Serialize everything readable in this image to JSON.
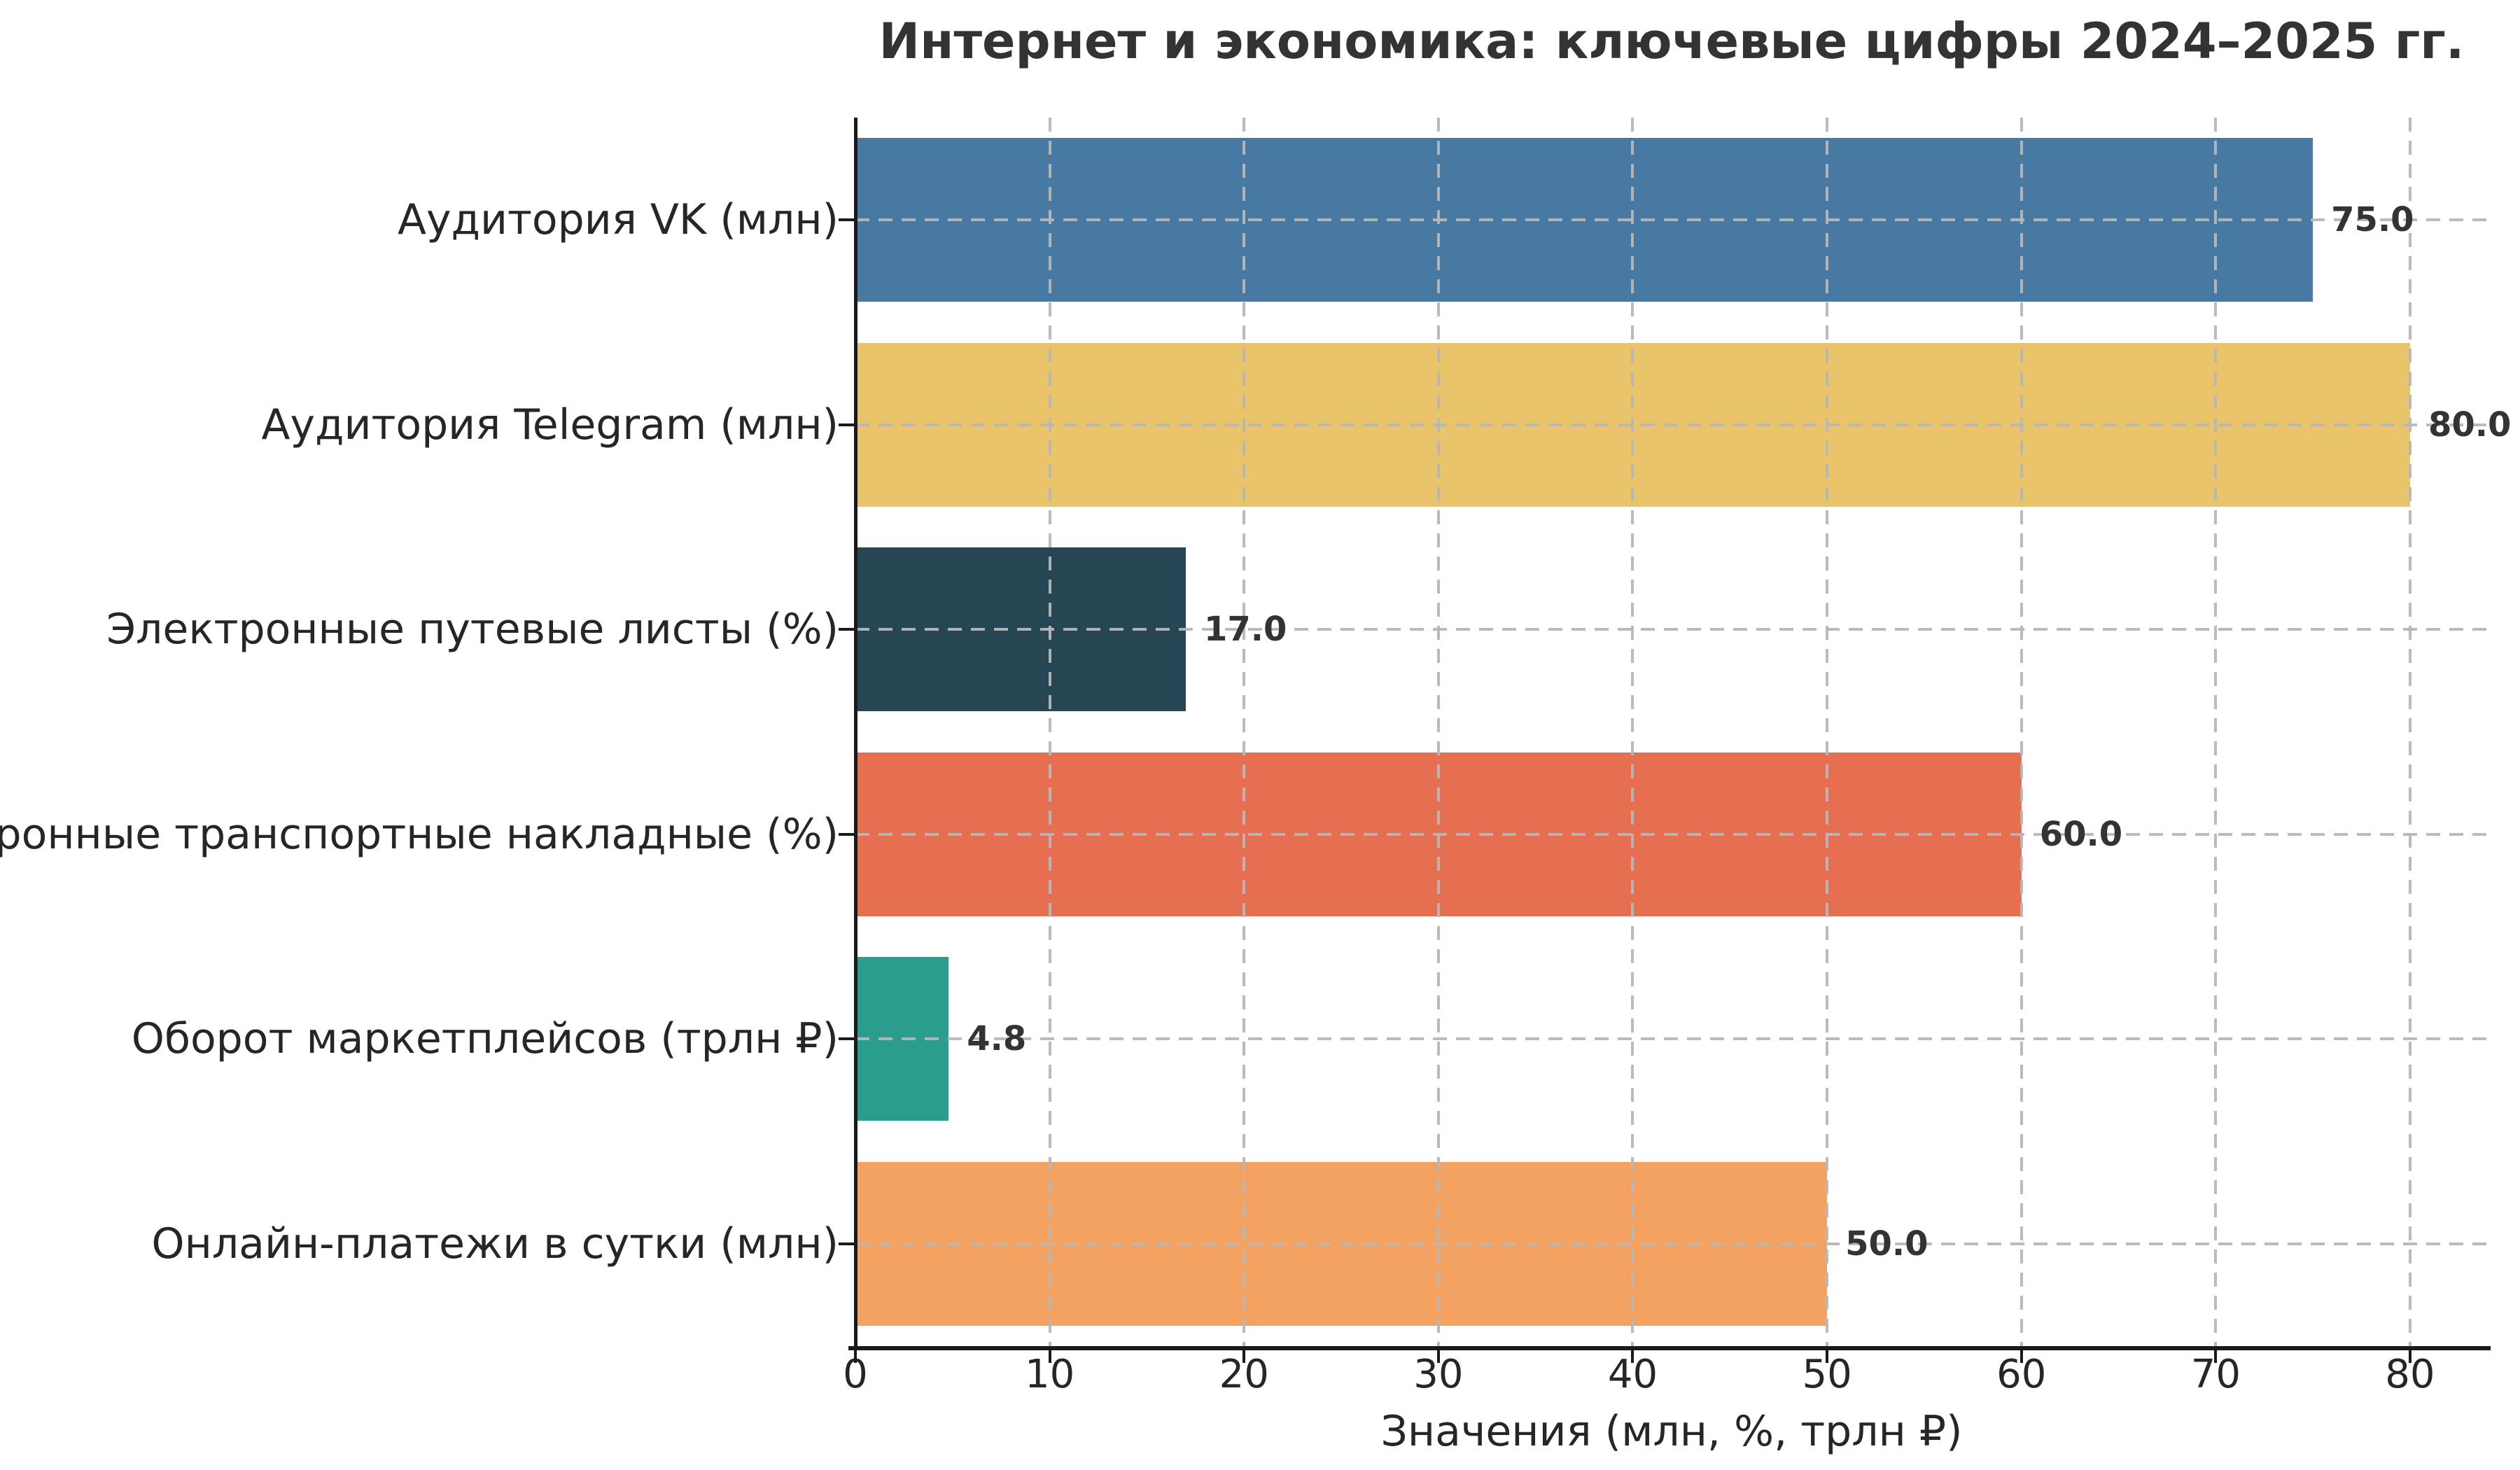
{
  "chart_data": {
    "type": "bar",
    "orientation": "horizontal",
    "title": "Интернет и экономика: ключевые цифры 2024–2025 гг.",
    "xlabel": "Значения (млн, %, трлн ₽)",
    "ylabel": "",
    "categories": [
      "Аудитория VK (млн)",
      "Аудитория Telegram (млн)",
      "Электронные путевые листы (%)",
      "Электронные транспортные накладные (%)",
      "Оборот маркетплейсов (трлн ₽)",
      "Онлайн-платежи в сутки (млн)"
    ],
    "values": [
      75.0,
      80.0,
      17.0,
      60.0,
      4.8,
      50.0
    ],
    "value_labels": [
      "75.0",
      "80.0",
      "17.0",
      "60.0",
      "4.8",
      "50.0"
    ],
    "bar_colors": [
      "#4779a3",
      "#e9c46a",
      "#264653",
      "#e76f51",
      "#2a9d8f",
      "#f4a261"
    ],
    "x_ticks": [
      0,
      10,
      20,
      30,
      40,
      50,
      60,
      70,
      80
    ],
    "xlim": [
      0,
      84
    ],
    "bar_height_fraction": 0.8,
    "grid": {
      "style": "dashed",
      "axes": "both",
      "color": "#b7b7b7",
      "above_bars": true
    },
    "legend": null
  },
  "colors": {
    "background": "#ffffff",
    "title_text": "#333333",
    "axis_text": "#262626",
    "value_label_text": "#333333",
    "spine": "#1a1a1a",
    "grid": "#b7b7b7"
  }
}
